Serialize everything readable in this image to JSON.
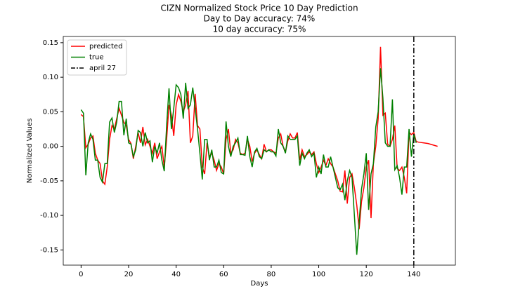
{
  "chart_data": {
    "type": "line",
    "title": "CIZN Normalized Stock Price 10 Day Prediction",
    "subtitle": [
      "Day to Day accuracy: 74%",
      "10 day accuracy: 75%"
    ],
    "xlabel": "Days",
    "ylabel": "Normalized Values",
    "x": [
      0,
      1,
      2,
      3,
      4,
      5,
      6,
      7,
      8,
      9,
      10,
      11,
      12,
      13,
      14,
      15,
      16,
      17,
      18,
      19,
      20,
      21,
      22,
      23,
      24,
      25,
      26,
      27,
      28,
      29,
      30,
      31,
      32,
      33,
      34,
      35,
      36,
      37,
      38,
      39,
      40,
      41,
      42,
      43,
      44,
      45,
      46,
      47,
      48,
      49,
      50,
      51,
      52,
      53,
      54,
      55,
      56,
      57,
      58,
      59,
      60,
      61,
      62,
      63,
      64,
      65,
      66,
      67,
      68,
      69,
      70,
      71,
      72,
      73,
      74,
      75,
      76,
      77,
      78,
      79,
      80,
      81,
      82,
      83,
      84,
      85,
      86,
      87,
      88,
      89,
      90,
      91,
      92,
      93,
      94,
      95,
      96,
      97,
      98,
      99,
      100,
      101,
      102,
      103,
      104,
      105,
      106,
      107,
      108,
      109,
      110,
      111,
      112,
      113,
      114,
      115,
      116,
      117,
      118,
      119,
      120,
      121,
      122,
      123,
      124,
      125,
      126,
      127,
      128,
      129,
      130,
      131,
      132,
      133,
      134,
      135,
      136,
      137,
      138,
      139,
      140,
      141,
      142,
      143,
      144,
      145,
      146,
      147,
      148,
      149,
      150
    ],
    "series": [
      {
        "name": "predicted",
        "color": "#ff0000",
        "values": [
          0.046,
          0.043,
          -0.002,
          0.003,
          0.012,
          0.015,
          -0.01,
          -0.02,
          -0.025,
          -0.05,
          -0.055,
          -0.03,
          0.01,
          0.03,
          0.025,
          0.04,
          0.055,
          0.045,
          0.035,
          0.03,
          0.01,
          0.004,
          -0.018,
          0.0,
          0.02,
          0.005,
          0.028,
          0.002,
          0.01,
          0.0,
          -0.01,
          0.005,
          -0.018,
          -0.008,
          0.0,
          -0.03,
          0.01,
          0.06,
          0.045,
          0.015,
          0.06,
          0.075,
          0.065,
          0.05,
          0.06,
          0.08,
          0.005,
          0.015,
          0.076,
          0.03,
          0.025,
          -0.03,
          -0.04,
          0.005,
          -0.015,
          -0.01,
          -0.02,
          -0.035,
          -0.025,
          -0.03,
          -0.04,
          0.01,
          0.025,
          -0.01,
          -0.005,
          0.01,
          0.005,
          -0.01,
          -0.012,
          -0.01,
          0.01,
          0.0,
          -0.022,
          -0.01,
          -0.005,
          -0.012,
          -0.018,
          0.003,
          -0.008,
          -0.005,
          -0.005,
          -0.008,
          -0.01,
          0.012,
          0.018,
          0.0,
          -0.008,
          0.008,
          0.018,
          0.012,
          0.012,
          0.02,
          -0.02,
          -0.005,
          -0.015,
          -0.012,
          -0.008,
          -0.012,
          -0.008,
          -0.025,
          -0.038,
          -0.03,
          -0.02,
          -0.028,
          -0.018,
          -0.025,
          -0.03,
          -0.04,
          -0.05,
          -0.065,
          -0.066,
          -0.035,
          -0.083,
          -0.045,
          -0.04,
          -0.06,
          -0.085,
          -0.12,
          -0.08,
          -0.06,
          -0.03,
          -0.02,
          -0.104,
          -0.025,
          0.0,
          0.04,
          0.144,
          0.045,
          0.048,
          0.003,
          0.0,
          0.01,
          0.03,
          -0.032,
          -0.035,
          -0.03,
          -0.045,
          -0.068,
          0.02,
          0.017,
          0.02,
          0.007,
          0.006,
          0.0055,
          0.005,
          0.0045,
          0.004,
          0.003,
          0.002,
          0.001,
          0.0
        ]
      },
      {
        "name": "true",
        "color": "#008000",
        "values": [
          0.053,
          0.048,
          -0.042,
          0.005,
          0.018,
          0.01,
          -0.02,
          -0.02,
          -0.045,
          -0.052,
          -0.025,
          -0.025,
          0.035,
          0.041,
          0.02,
          0.035,
          0.065,
          0.065,
          0.016,
          0.04,
          0.005,
          0.003,
          -0.015,
          -0.005,
          0.023,
          0.02,
          0.0,
          0.02,
          0.005,
          0.008,
          -0.023,
          0.0,
          -0.01,
          0.005,
          -0.02,
          -0.036,
          0.03,
          0.084,
          0.025,
          0.055,
          0.089,
          0.085,
          0.075,
          0.04,
          0.092,
          0.055,
          0.06,
          0.085,
          0.055,
          0.025,
          -0.01,
          -0.048,
          0.01,
          0.01,
          -0.02,
          -0.005,
          -0.03,
          -0.03,
          -0.02,
          -0.038,
          -0.04,
          0.036,
          0.0,
          -0.015,
          0.0,
          0.005,
          0.012,
          -0.012,
          -0.012,
          -0.013,
          0.015,
          -0.015,
          -0.03,
          -0.008,
          -0.003,
          -0.015,
          -0.018,
          -0.005,
          -0.008,
          -0.005,
          -0.008,
          -0.008,
          -0.014,
          0.025,
          0.005,
          0.0,
          -0.01,
          0.015,
          0.01,
          0.01,
          0.01,
          0.015,
          -0.028,
          -0.01,
          -0.018,
          -0.01,
          -0.005,
          -0.015,
          -0.01,
          -0.045,
          -0.03,
          -0.04,
          -0.012,
          -0.03,
          -0.03,
          -0.015,
          -0.03,
          -0.045,
          -0.06,
          -0.063,
          -0.055,
          -0.078,
          -0.05,
          -0.035,
          -0.045,
          -0.1,
          -0.157,
          -0.11,
          -0.062,
          -0.04,
          -0.01,
          -0.092,
          -0.04,
          -0.025,
          0.028,
          0.05,
          0.113,
          0.07,
          0.005,
          0.0,
          0.0,
          0.068,
          -0.034,
          -0.028,
          -0.045,
          -0.07,
          -0.03,
          -0.03,
          0.025,
          -0.015,
          0.018,
          0.005,
          null,
          null,
          null,
          null,
          null,
          null,
          null,
          null,
          null
        ]
      }
    ],
    "vline": {
      "x": 140,
      "label": "april 27",
      "color": "#000000"
    },
    "xlim": [
      -7.5,
      157.5
    ],
    "xticks": [
      0,
      20,
      40,
      60,
      80,
      100,
      120,
      140
    ],
    "ylim": [
      -0.172,
      0.159
    ],
    "yticks": [
      -0.15,
      {
        "value": -0.1,
        "label": "-0.10"
      },
      -0.05,
      {
        "value": 0,
        "label": "0.00"
      },
      0.05,
      {
        "value": 0.1,
        "label": "0.10"
      },
      0.15
    ],
    "grid": false,
    "legend": "upper left"
  }
}
